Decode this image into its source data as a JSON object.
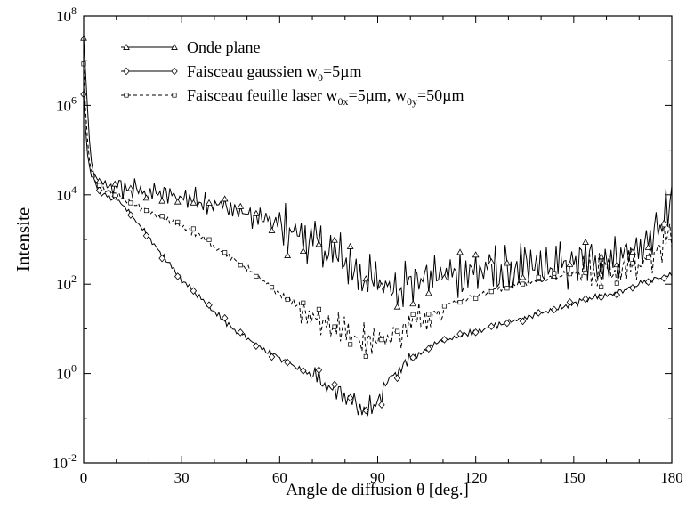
{
  "chart_data": {
    "type": "line",
    "xlabel": "Angle de diffusion θ  [deg.]",
    "ylabel": "Intensite",
    "xlim": [
      0,
      180
    ],
    "ylim_log10": [
      -2,
      8
    ],
    "y_scale": "log",
    "grid": false,
    "legend_position": "top-left",
    "x_ticks": [
      0,
      30,
      60,
      90,
      120,
      150,
      180
    ],
    "y_ticks": [
      {
        "base": "10",
        "exp": "8"
      },
      {
        "base": "10",
        "exp": "6"
      },
      {
        "base": "10",
        "exp": "4"
      },
      {
        "base": "10",
        "exp": "2"
      },
      {
        "base": "10",
        "exp": "0"
      },
      {
        "base": "10",
        "exp": "-2"
      }
    ],
    "legend": [
      {
        "text": "Onde plane"
      },
      {
        "text": "Faisceau gaussien w",
        "sub": "0",
        "rest": "=5µm"
      },
      {
        "text": "Faisceau feuille laser w",
        "sub": "0x",
        "rest": "=5µm, w",
        "sub2": "0y",
        "rest2": "=50µm"
      }
    ],
    "series": [
      {
        "name": "Onde plane",
        "marker": "triangle",
        "dash": "solid",
        "log10_points": [
          [
            0,
            7.5
          ],
          [
            1,
            6.2
          ],
          [
            2,
            4.9
          ],
          [
            3,
            4.5
          ],
          [
            5,
            4.25
          ],
          [
            8,
            4.2
          ],
          [
            12,
            4.15
          ],
          [
            16,
            4.1
          ],
          [
            20,
            4.05
          ],
          [
            25,
            4.0
          ],
          [
            30,
            3.95
          ],
          [
            35,
            3.9
          ],
          [
            40,
            3.8
          ],
          [
            45,
            3.7
          ],
          [
            50,
            3.55
          ],
          [
            55,
            3.45
          ],
          [
            60,
            3.3
          ],
          [
            65,
            3.15
          ],
          [
            70,
            2.95
          ],
          [
            75,
            2.75
          ],
          [
            80,
            2.5
          ],
          [
            85,
            2.2
          ],
          [
            90,
            2.0
          ],
          [
            95,
            2.0
          ],
          [
            100,
            2.05
          ],
          [
            105,
            2.15
          ],
          [
            110,
            2.2
          ],
          [
            120,
            2.3
          ],
          [
            130,
            2.3
          ],
          [
            140,
            2.35
          ],
          [
            150,
            2.45
          ],
          [
            160,
            2.55
          ],
          [
            170,
            2.8
          ],
          [
            175,
            3.1
          ],
          [
            180,
            3.8
          ]
        ],
        "noise": 0.5
      },
      {
        "name": "Faisceau gaussien w0=5µm",
        "marker": "diamond",
        "dash": "solid",
        "log10_points": [
          [
            0,
            6.2
          ],
          [
            1,
            5.0
          ],
          [
            2,
            4.5
          ],
          [
            5,
            4.05
          ],
          [
            10,
            3.9
          ],
          [
            15,
            3.5
          ],
          [
            20,
            3.05
          ],
          [
            25,
            2.55
          ],
          [
            30,
            2.1
          ],
          [
            35,
            1.75
          ],
          [
            40,
            1.4
          ],
          [
            45,
            1.05
          ],
          [
            50,
            0.8
          ],
          [
            55,
            0.55
          ],
          [
            60,
            0.35
          ],
          [
            65,
            0.15
          ],
          [
            70,
            -0.05
          ],
          [
            75,
            -0.3
          ],
          [
            80,
            -0.55
          ],
          [
            85,
            -0.85
          ],
          [
            90,
            -0.6
          ],
          [
            92,
            -0.3
          ],
          [
            95,
            0.0
          ],
          [
            100,
            0.3
          ],
          [
            105,
            0.55
          ],
          [
            110,
            0.75
          ],
          [
            120,
            0.95
          ],
          [
            130,
            1.15
          ],
          [
            140,
            1.35
          ],
          [
            150,
            1.55
          ],
          [
            155,
            1.7
          ],
          [
            160,
            1.75
          ],
          [
            165,
            1.85
          ],
          [
            170,
            2.0
          ],
          [
            175,
            2.1
          ],
          [
            180,
            2.2
          ]
        ],
        "noise": 0.08
      },
      {
        "name": "Faisceau feuille laser w0x=5µm, w0y=50µm",
        "marker": "square",
        "dash": "dashed",
        "log10_points": [
          [
            0,
            6.9
          ],
          [
            1,
            5.3
          ],
          [
            2,
            4.6
          ],
          [
            5,
            4.15
          ],
          [
            10,
            4.0
          ],
          [
            15,
            3.8
          ],
          [
            20,
            3.65
          ],
          [
            25,
            3.45
          ],
          [
            30,
            3.3
          ],
          [
            35,
            3.1
          ],
          [
            40,
            2.85
          ],
          [
            45,
            2.6
          ],
          [
            50,
            2.35
          ],
          [
            55,
            2.05
          ],
          [
            60,
            1.8
          ],
          [
            65,
            1.55
          ],
          [
            70,
            1.3
          ],
          [
            75,
            1.1
          ],
          [
            80,
            0.95
          ],
          [
            85,
            0.8
          ],
          [
            90,
            0.75
          ],
          [
            95,
            0.85
          ],
          [
            100,
            1.1
          ],
          [
            105,
            1.3
          ],
          [
            110,
            1.5
          ],
          [
            120,
            1.75
          ],
          [
            130,
            1.95
          ],
          [
            140,
            2.1
          ],
          [
            150,
            2.25
          ],
          [
            160,
            2.35
          ],
          [
            170,
            2.5
          ],
          [
            175,
            2.7
          ],
          [
            180,
            3.0
          ]
        ],
        "noise": 0.3
      }
    ]
  }
}
